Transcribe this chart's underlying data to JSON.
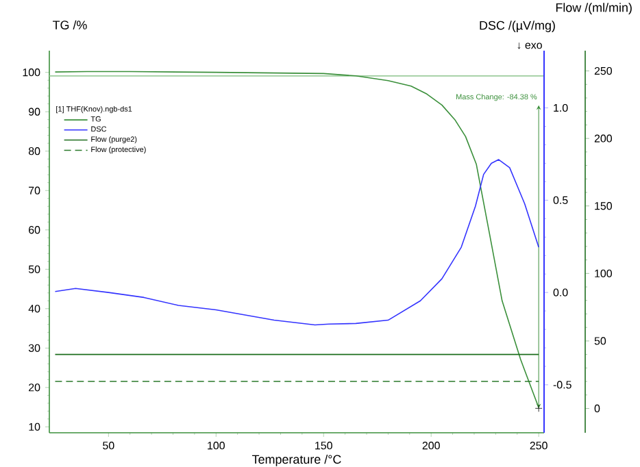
{
  "chart_data": {
    "type": "line",
    "xlabel": "Temperature /°C",
    "ylabel": "TG /%",
    "y2label": "DSC /(µV/mg)",
    "y3label": "Flow /(ml/min)",
    "legend_title": "[1] THF(Knov).ngb-ds1",
    "legend": "top left",
    "grid": false,
    "marker": "none",
    "xlim": [
      22.5,
      252.5
    ],
    "xticks": [
      50,
      100,
      150,
      200,
      250
    ],
    "ylim": [
      8.5,
      105.5
    ],
    "yticks": [
      10,
      20,
      30,
      40,
      50,
      60,
      70,
      80,
      90,
      100
    ],
    "y2lim": [
      -0.76,
      1.31
    ],
    "y2ticks": [
      -0.5,
      {
        "value": 0,
        "label": "0.0"
      },
      0.5,
      {
        "value": 1,
        "label": "1.0"
      }
    ],
    "y3lim": [
      -18,
      265
    ],
    "y3ticks": [
      0,
      50,
      100,
      150,
      200,
      250
    ],
    "annotations": [
      "↓ exo",
      {
        "text": "Mass Change: -84.38 %",
        "x": 250,
        "y": 14.7
      }
    ],
    "ref_lines": [
      {
        "axis": "y",
        "value": 99.1,
        "color": "#9ccc9c"
      }
    ],
    "series": [
      {
        "name": "TG",
        "color": "#3a8f3a",
        "line_style": "solid",
        "x": [
          25.2,
          40,
          60,
          100,
          150,
          165,
          180,
          190.7,
          198,
          205,
          211,
          216,
          221,
          227,
          233,
          241.6,
          250
        ],
        "values": [
          100.1,
          100.2,
          100.2,
          100.0,
          99.7,
          99.1,
          97.9,
          96.5,
          94.5,
          91.7,
          88.0,
          83.7,
          76.7,
          59.4,
          42,
          27.1,
          14.9
        ]
      },
      {
        "name": "DSC",
        "color": "#3333ff",
        "axis": "y2",
        "line_style": "solid",
        "x": [
          25.2,
          34.7,
          50,
          66.5,
          82.5,
          100,
          127,
          146,
          152.5,
          165,
          180,
          195,
          205,
          214,
          220.6,
          224.4,
          228,
          231.4,
          236.5,
          243.5,
          250
        ],
        "values": [
          0.005,
          0.022,
          0.0,
          -0.027,
          -0.07,
          -0.094,
          -0.15,
          -0.176,
          -0.171,
          -0.168,
          -0.15,
          -0.045,
          0.074,
          0.245,
          0.468,
          0.64,
          0.7,
          0.72,
          0.676,
          0.48,
          0.245
        ]
      },
      {
        "name": "Flow (purge2)",
        "color": "#1e6e1e",
        "axis": "y3",
        "line_style": "solid",
        "x": [
          25.2,
          250
        ],
        "values": [
          40,
          40
        ]
      },
      {
        "name": "Flow (protective)",
        "color": "#2a7a2a",
        "axis": "y3",
        "line_style": "dashed",
        "x": [
          25.2,
          250
        ],
        "values": [
          20,
          20
        ]
      }
    ]
  }
}
